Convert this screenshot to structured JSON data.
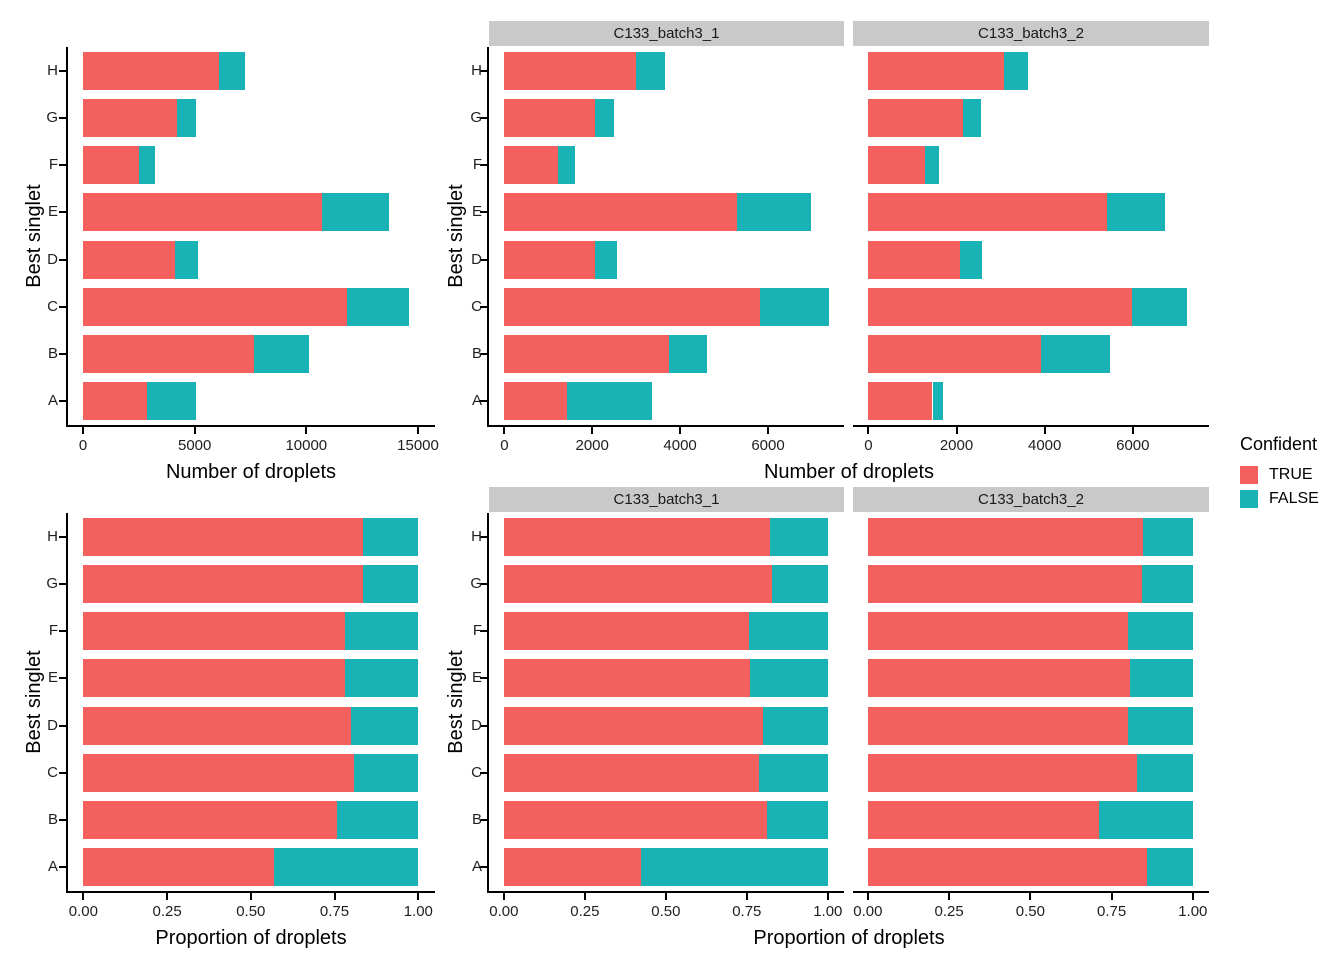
{
  "chart_data": {
    "type": "bar",
    "orientation": "horizontal",
    "stacked": true,
    "grid": false,
    "ylabel": "Best singlet",
    "categories_top_to_bottom": [
      "H",
      "G",
      "F",
      "E",
      "D",
      "C",
      "B",
      "A"
    ],
    "colors": {
      "TRUE": "#f3605e",
      "FALSE": "#19b3b5"
    },
    "legend": {
      "title": "Confident",
      "position": "right",
      "entries": [
        {
          "label": "TRUE",
          "color": "#f3605e"
        },
        {
          "label": "FALSE",
          "color": "#19b3b5"
        }
      ]
    },
    "facet_labels": [
      "C133_batch3_1",
      "C133_batch3_2"
    ],
    "rows": [
      {
        "xlabel": "Number of droplets",
        "panels": [
          {
            "facet": null,
            "x_ticks": [
              0,
              5000,
              10000,
              15000
            ],
            "x_tick_labels": [
              "0",
              "5000",
              "10000",
              "15000"
            ],
            "x_domain": [
              -670,
              15760
            ],
            "series": [
              {
                "name": "TRUE",
                "values": [
                  6080,
                  4220,
                  2510,
                  10720,
                  4130,
                  11805,
                  7660,
                  2885
                ]
              },
              {
                "name": "FALSE",
                "values": [
                  1190,
                  830,
                  710,
                  2980,
                  1030,
                  2810,
                  2460,
                  2180
                ]
              }
            ]
          },
          {
            "facet": "C133_batch3_1",
            "x_ticks": [
              0,
              2000,
              4000,
              6000
            ],
            "x_tick_labels": [
              "0",
              "2000",
              "4000",
              "6000"
            ],
            "x_domain": [
              -350,
              7730
            ],
            "series": [
              {
                "name": "TRUE",
                "values": [
                  3000,
                  2070,
                  1220,
                  5300,
                  2055,
                  5820,
                  3750,
                  1430
                ]
              },
              {
                "name": "FALSE",
                "values": [
                  650,
                  430,
                  390,
                  1675,
                  515,
                  1565,
                  875,
                  1940
                ]
              }
            ]
          },
          {
            "facet": "C133_batch3_2",
            "x_ticks": [
              0,
              2000,
              4000,
              6000
            ],
            "x_tick_labels": [
              "0",
              "2000",
              "4000",
              "6000"
            ],
            "x_domain": [
              -350,
              7730
            ],
            "series": [
              {
                "name": "TRUE",
                "values": [
                  3080,
                  2150,
                  1290,
                  5420,
                  2075,
                  5985,
                  3910,
                  1455
                ]
              },
              {
                "name": "FALSE",
                "values": [
                  550,
                  400,
                  320,
                  1305,
                  515,
                  1245,
                  1585,
                  240
                ]
              }
            ]
          }
        ]
      },
      {
        "xlabel": "Proportion of droplets",
        "panels": [
          {
            "facet": null,
            "x_ticks": [
              0,
              0.25,
              0.5,
              0.75,
              1
            ],
            "x_tick_labels": [
              "0.00",
              "0.25",
              "0.50",
              "0.75",
              "1.00"
            ],
            "x_domain": [
              -0.046,
              1.05
            ],
            "series": [
              {
                "name": "TRUE",
                "values": [
                  0.836,
                  0.836,
                  0.78,
                  0.782,
                  0.8,
                  0.808,
                  0.757,
                  0.57
                ]
              },
              {
                "name": "FALSE",
                "values": [
                  0.164,
                  0.164,
                  0.22,
                  0.218,
                  0.2,
                  0.192,
                  0.243,
                  0.43
                ]
              }
            ]
          },
          {
            "facet": "C133_batch3_1",
            "x_ticks": [
              0,
              0.25,
              0.5,
              0.75,
              1
            ],
            "x_tick_labels": [
              "0.00",
              "0.25",
              "0.50",
              "0.75",
              "1.00"
            ],
            "x_domain": [
              -0.046,
              1.05
            ],
            "series": [
              {
                "name": "TRUE",
                "values": [
                  0.822,
                  0.828,
                  0.758,
                  0.76,
                  0.8,
                  0.788,
                  0.811,
                  0.424
                ]
              },
              {
                "name": "FALSE",
                "values": [
                  0.178,
                  0.172,
                  0.242,
                  0.24,
                  0.2,
                  0.212,
                  0.189,
                  0.576
                ]
              }
            ]
          },
          {
            "facet": "C133_batch3_2",
            "x_ticks": [
              0,
              0.25,
              0.5,
              0.75,
              1
            ],
            "x_tick_labels": [
              "0.00",
              "0.25",
              "0.50",
              "0.75",
              "1.00"
            ],
            "x_domain": [
              -0.046,
              1.05
            ],
            "series": [
              {
                "name": "TRUE",
                "values": [
                  0.848,
                  0.843,
                  0.801,
                  0.806,
                  0.801,
                  0.828,
                  0.712,
                  0.858
                ]
              },
              {
                "name": "FALSE",
                "values": [
                  0.152,
                  0.157,
                  0.199,
                  0.194,
                  0.199,
                  0.172,
                  0.288,
                  0.142
                ]
              }
            ]
          }
        ]
      }
    ]
  }
}
